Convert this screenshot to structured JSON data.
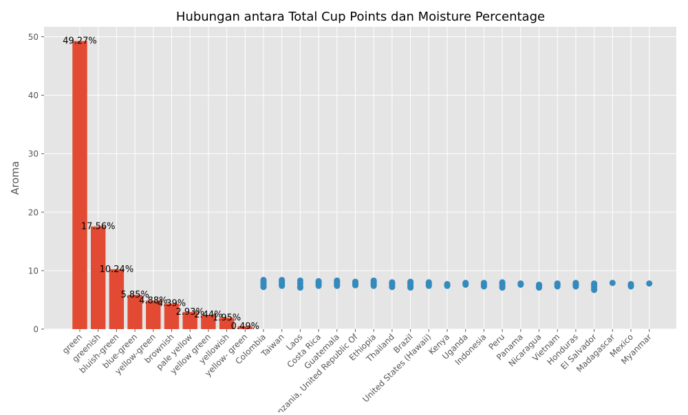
{
  "chart_data": {
    "type": "bar",
    "title": "Hubungan antara Total Cup Points dan Moisture Percentage",
    "xlabel": "",
    "ylabel": "Aroma",
    "ylim": [
      0,
      51.7
    ],
    "yticks": [
      0,
      10,
      20,
      30,
      40,
      50
    ],
    "grid": true,
    "colors": {
      "bars": "#E24A33",
      "points": "#348ABD",
      "background": "#E5E5E5",
      "grid": "#FFFFFF",
      "tick_text": "#555555"
    },
    "categories": [
      "green",
      "greenish",
      "bluish-green",
      "blue-green",
      "yellow-green",
      "brownish",
      "pale yellow",
      "yellow green",
      "yellowish",
      "yellow- green",
      "Colombia",
      "Taiwan",
      "Laos",
      "Costa Rica",
      "Guatemala",
      "Tanzania, United Republic Of",
      "Ethiopia",
      "Thailand",
      "Brazil",
      "United States (Hawaii)",
      "Kenya",
      "Uganda",
      "Indonesia",
      "Peru",
      "Panama",
      "Nicaragua",
      "Vietnam",
      "Honduras",
      "El Salvador",
      "Madagascar",
      "Mexico",
      "Myanmar"
    ],
    "bars": [
      {
        "category": "green",
        "value": 49.27,
        "label": "49.27%"
      },
      {
        "category": "greenish",
        "value": 17.56,
        "label": "17.56%"
      },
      {
        "category": "bluish-green",
        "value": 10.24,
        "label": "10.24%"
      },
      {
        "category": "blue-green",
        "value": 5.85,
        "label": "5.85%"
      },
      {
        "category": "yellow-green",
        "value": 4.88,
        "label": "4.88%"
      },
      {
        "category": "brownish",
        "value": 4.39,
        "label": "4.39%"
      },
      {
        "category": "pale yellow",
        "value": 2.93,
        "label": "2.93%"
      },
      {
        "category": "yellow green",
        "value": 2.44,
        "label": "2.44%"
      },
      {
        "category": "yellowish",
        "value": 1.95,
        "label": "1.95%"
      },
      {
        "category": "yellow- green",
        "value": 0.49,
        "label": "0.49%"
      }
    ],
    "scatter": [
      {
        "category": "Colombia",
        "values": [
          7.2,
          7.4,
          7.6,
          7.8,
          8.0,
          8.2,
          8.4
        ]
      },
      {
        "category": "Taiwan",
        "values": [
          7.4,
          7.6,
          7.8,
          8.0,
          8.2,
          8.4
        ]
      },
      {
        "category": "Laos",
        "values": [
          7.1,
          7.3,
          7.8,
          8.3
        ]
      },
      {
        "category": "Costa Rica",
        "values": [
          7.4,
          7.6,
          7.8,
          8.0,
          8.2
        ]
      },
      {
        "category": "Guatemala",
        "values": [
          7.4,
          7.6,
          7.8,
          8.0,
          8.2,
          8.3
        ]
      },
      {
        "category": "Tanzania, United Republic Of",
        "values": [
          7.5,
          7.7,
          7.9,
          8.1
        ]
      },
      {
        "category": "Ethiopia",
        "values": [
          7.4,
          7.6,
          7.8,
          8.0,
          8.2,
          8.3
        ]
      },
      {
        "category": "Thailand",
        "values": [
          7.2,
          7.4,
          7.6,
          7.8,
          8.0
        ]
      },
      {
        "category": "Brazil",
        "values": [
          7.1,
          7.3,
          7.5,
          7.7,
          7.9,
          8.1
        ]
      },
      {
        "category": "United States (Hawaii)",
        "values": [
          7.4,
          7.6,
          7.8,
          8.0
        ]
      },
      {
        "category": "Kenya",
        "values": [
          7.4,
          7.6,
          7.7
        ]
      },
      {
        "category": "Uganda",
        "values": [
          7.6,
          7.8,
          7.9
        ]
      },
      {
        "category": "Indonesia",
        "values": [
          7.3,
          7.5,
          7.7,
          7.9
        ]
      },
      {
        "category": "Peru",
        "values": [
          7.1,
          7.3,
          7.6,
          7.8,
          8.0
        ]
      },
      {
        "category": "Panama",
        "values": [
          7.6,
          7.8
        ]
      },
      {
        "category": "Nicaragua",
        "values": [
          7.1,
          7.3,
          7.5,
          7.6
        ]
      },
      {
        "category": "Vietnam",
        "values": [
          7.3,
          7.5,
          7.7,
          7.8
        ]
      },
      {
        "category": "Honduras",
        "values": [
          7.3,
          7.5,
          7.7,
          7.9
        ]
      },
      {
        "category": "El Salvador",
        "values": [
          6.7,
          6.9,
          7.2,
          7.4,
          7.6,
          7.8
        ]
      },
      {
        "category": "Madagascar",
        "values": [
          7.9
        ]
      },
      {
        "category": "Mexico",
        "values": [
          7.3,
          7.5,
          7.7
        ]
      },
      {
        "category": "Myanmar",
        "values": [
          7.8
        ]
      }
    ]
  }
}
